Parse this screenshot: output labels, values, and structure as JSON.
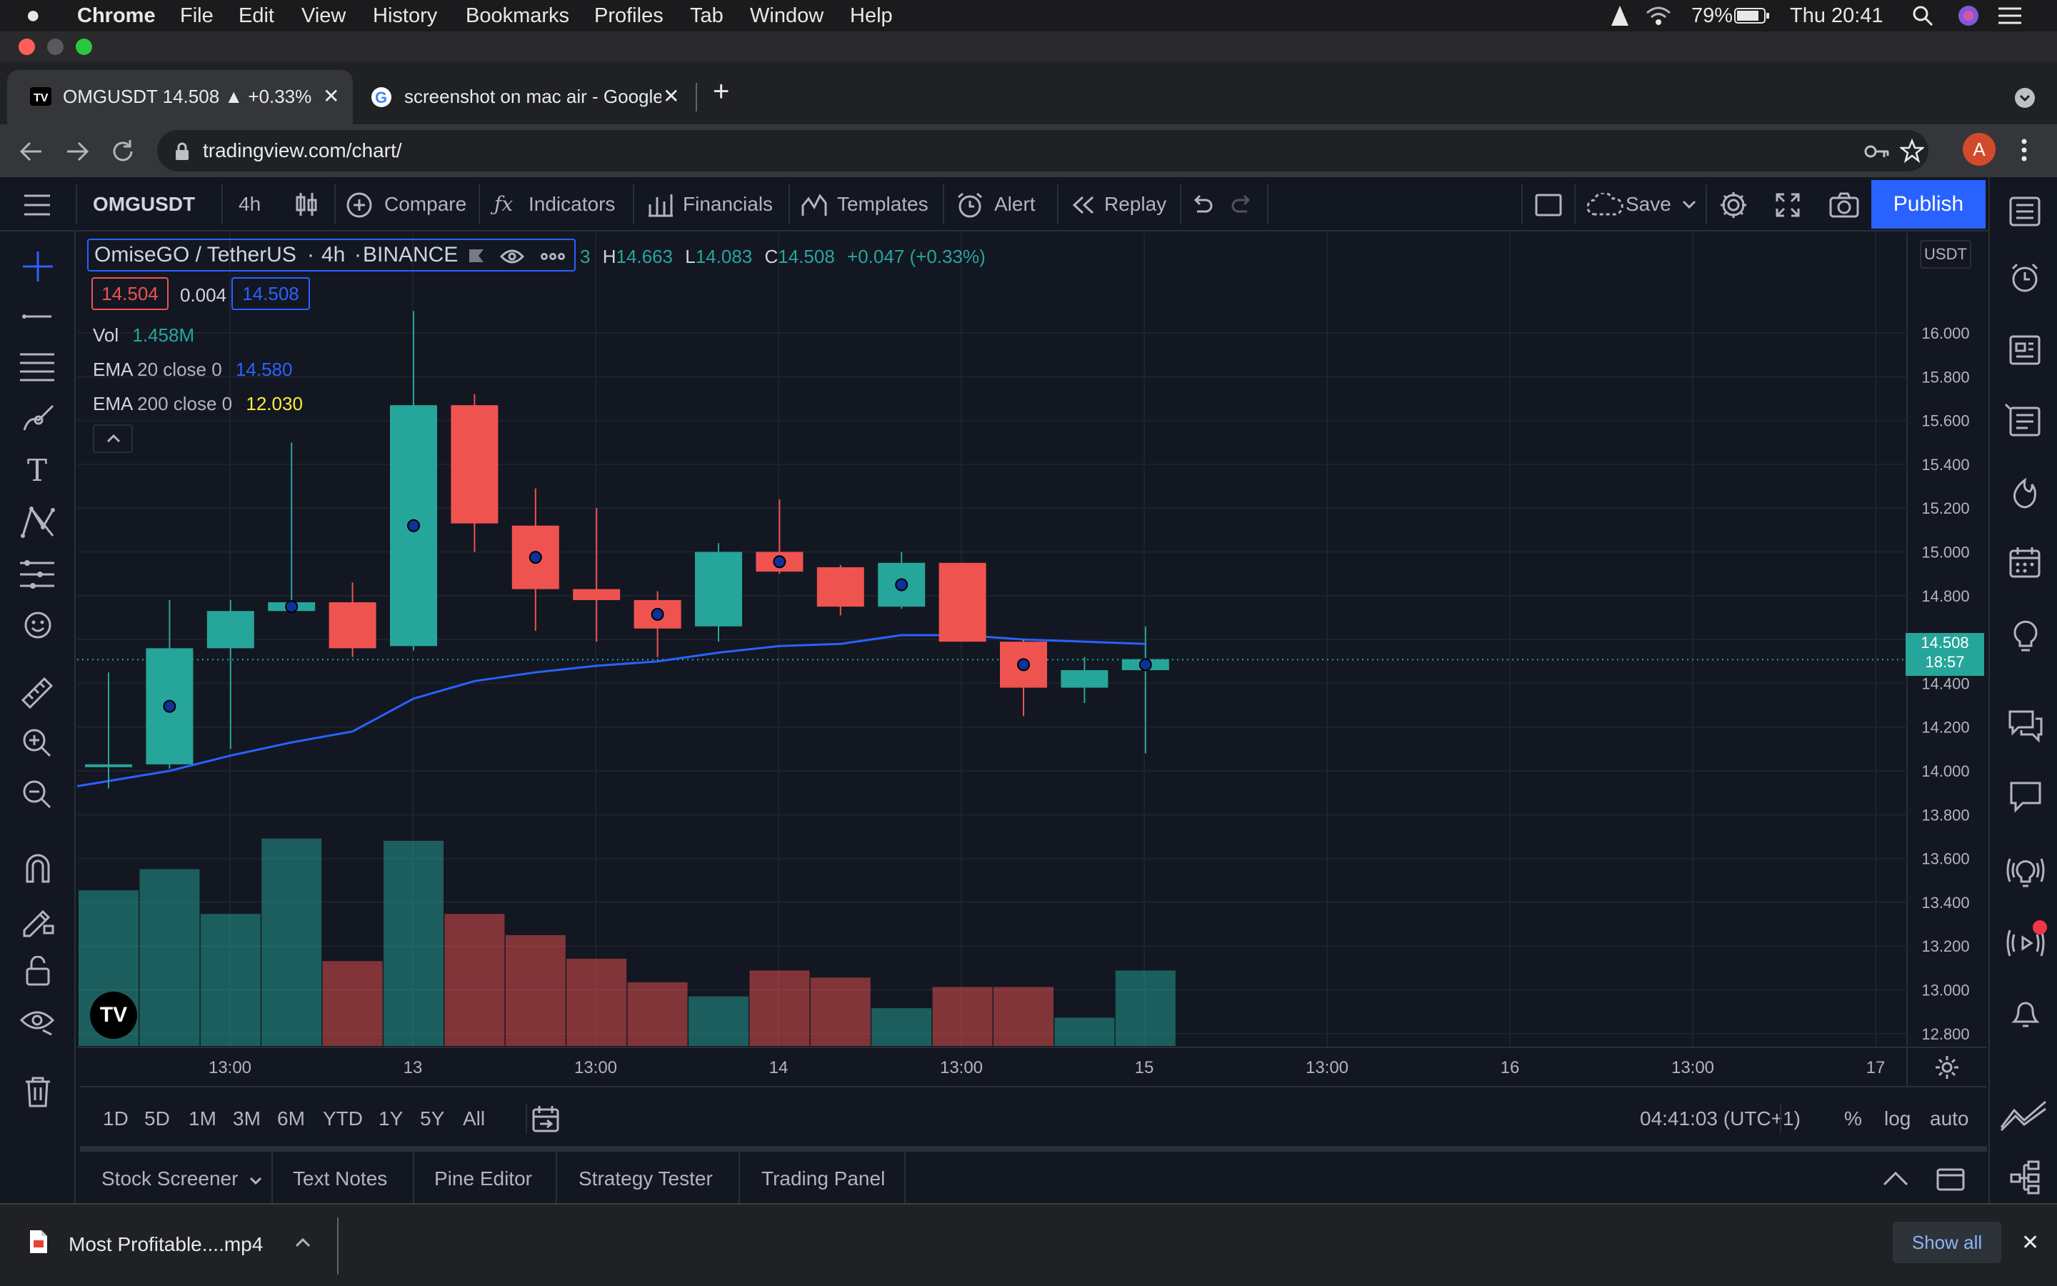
{
  "menubar": {
    "app": "Chrome",
    "items": [
      "File",
      "Edit",
      "View",
      "History",
      "Bookmarks",
      "Profiles",
      "Tab",
      "Window",
      "Help"
    ],
    "battery": "79%",
    "clock": "Thu 20:41"
  },
  "tabs": [
    {
      "title": "OMGUSDT 14.508 ▲ +0.33%"
    },
    {
      "title": "screenshot on mac air - Google"
    }
  ],
  "address": {
    "url": "tradingview.com/chart/",
    "avatar": "A"
  },
  "toolbar": {
    "symbol": "OMGUSDT",
    "interval": "4h",
    "compare": "Compare",
    "indicators": "Indicators",
    "financials": "Financials",
    "templates": "Templates",
    "alert": "Alert",
    "replay": "Replay",
    "save": "Save",
    "publish": "Publish"
  },
  "legend": {
    "name": "OmiseGO / TetherUS",
    "interval": "4h",
    "exchange": "BINANCE",
    "o_tail": "3",
    "h_label": "H",
    "h": "14.663",
    "l_label": "L",
    "l": "14.083",
    "c_label": "C",
    "c": "14.508",
    "change": "+0.047 (+0.33%)",
    "bid": "14.504",
    "spread": "0.004",
    "ask": "14.508",
    "vol_label": "Vol",
    "vol": "1.458M",
    "ema20_label": "EMA",
    "ema20_params": "20 close 0",
    "ema20": "14.580",
    "ema200_label": "EMA",
    "ema200_params": "200 close 0",
    "ema200": "12.030"
  },
  "price_axis": {
    "currency": "USDT",
    "current_price": "14.508",
    "countdown": "18:57"
  },
  "timebar": {
    "ranges": [
      "1D",
      "5D",
      "1M",
      "3M",
      "6M",
      "YTD",
      "1Y",
      "5Y",
      "All"
    ],
    "clock": "04:41:03 (UTC+1)",
    "pct": "%",
    "log": "log",
    "auto": "auto"
  },
  "bottom_tabs": [
    "Stock Screener",
    "Text Notes",
    "Pine Editor",
    "Strategy Tester",
    "Trading Panel"
  ],
  "download": {
    "file": "Most Profitable....mp4",
    "show_all": "Show all"
  },
  "colors": {
    "up": "#26a69a",
    "down": "#ef5350",
    "ema20": "#2962ff",
    "ema200": "#ffeb3b",
    "bg": "#131722"
  },
  "chart_data": {
    "type": "candlestick",
    "symbol": "OMGUSDT",
    "interval": "4h",
    "exchange": "BINANCE",
    "y_ticks": [
      "16.000",
      "15.800",
      "15.600",
      "15.400",
      "15.200",
      "15.000",
      "14.800",
      "14.600",
      "14.400",
      "14.200",
      "14.000",
      "13.800",
      "13.600",
      "13.400",
      "13.200",
      "13.000",
      "12.800"
    ],
    "x_ticks": [
      "13:00",
      "13",
      "13:00",
      "14",
      "13:00",
      "15",
      "13:00",
      "16",
      "13:00",
      "17"
    ],
    "ylim": [
      12.77,
      16.15
    ],
    "candles": [
      {
        "o": 14.02,
        "h": 14.45,
        "l": 13.92,
        "c": 14.03,
        "v": 0.66
      },
      {
        "o": 14.03,
        "h": 14.78,
        "l": 14.01,
        "c": 14.56,
        "v": 0.75
      },
      {
        "o": 14.56,
        "h": 14.78,
        "l": 14.1,
        "c": 14.73,
        "v": 0.56
      },
      {
        "o": 14.73,
        "h": 15.5,
        "l": 14.72,
        "c": 14.77,
        "v": 0.88
      },
      {
        "o": 14.77,
        "h": 14.86,
        "l": 14.52,
        "c": 14.56,
        "v": 0.36
      },
      {
        "o": 14.57,
        "h": 16.1,
        "l": 14.55,
        "c": 15.67,
        "v": 0.87
      },
      {
        "o": 15.67,
        "h": 15.72,
        "l": 15.0,
        "c": 15.13,
        "v": 0.56
      },
      {
        "o": 15.12,
        "h": 15.29,
        "l": 14.64,
        "c": 14.83,
        "v": 0.47
      },
      {
        "o": 14.83,
        "h": 15.2,
        "l": 14.59,
        "c": 14.78,
        "v": 0.37
      },
      {
        "o": 14.78,
        "h": 14.82,
        "l": 14.52,
        "c": 14.65,
        "v": 0.27
      },
      {
        "o": 14.66,
        "h": 15.04,
        "l": 14.59,
        "c": 15.0,
        "v": 0.21
      },
      {
        "o": 15.0,
        "h": 15.24,
        "l": 14.9,
        "c": 14.91,
        "v": 0.32
      },
      {
        "o": 14.93,
        "h": 14.94,
        "l": 14.71,
        "c": 14.75,
        "v": 0.29
      },
      {
        "o": 14.75,
        "h": 15.0,
        "l": 14.74,
        "c": 14.95,
        "v": 0.16
      },
      {
        "o": 14.95,
        "h": 14.95,
        "l": 14.6,
        "c": 14.59,
        "v": 0.25
      },
      {
        "o": 14.59,
        "h": 14.6,
        "l": 14.25,
        "c": 14.38,
        "v": 0.25
      },
      {
        "o": 14.38,
        "h": 14.52,
        "l": 14.31,
        "c": 14.46,
        "v": 0.12
      },
      {
        "o": 14.46,
        "h": 14.66,
        "l": 14.08,
        "c": 14.51,
        "v": 0.32
      }
    ],
    "ema20": [
      13.93,
      14.0,
      14.07,
      14.13,
      14.18,
      14.33,
      14.41,
      14.45,
      14.48,
      14.5,
      14.54,
      14.57,
      14.58,
      14.62,
      14.62,
      14.6,
      14.59,
      14.58
    ],
    "marker_candles": [
      1,
      3,
      5,
      7,
      9,
      11,
      13,
      15,
      17
    ]
  }
}
